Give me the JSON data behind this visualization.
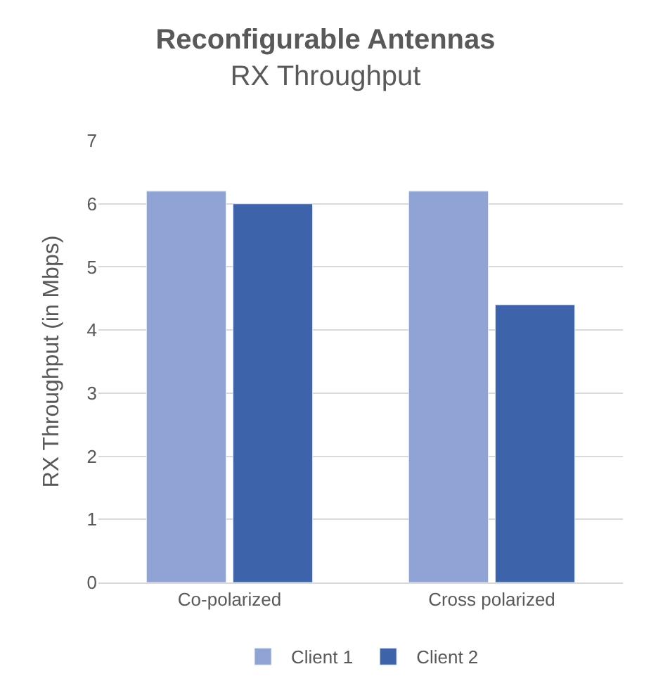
{
  "chart_data": {
    "type": "bar",
    "title": "Reconfigurable Antennas",
    "subtitle": "RX Throughput",
    "ylabel": "RX Throughput (in Mbps)",
    "categories": [
      "Co-polarized",
      "Cross polarized"
    ],
    "series": [
      {
        "name": "Client 1",
        "color": "#8fa4d4",
        "values": [
          6.2,
          6.2
        ]
      },
      {
        "name": "Client 2",
        "color": "#3d63ab",
        "values": [
          6.0,
          4.4
        ]
      }
    ],
    "ylim": [
      0,
      7
    ],
    "yticks": [
      0,
      1,
      2,
      3,
      4,
      5,
      6,
      7
    ],
    "grid": "y",
    "legend": "bottom"
  }
}
